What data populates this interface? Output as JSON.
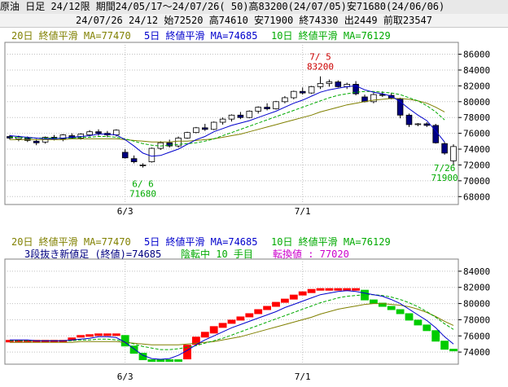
{
  "header": {
    "line1": "原油 日足 24/12限 期間24/05/17～24/07/26( 50)高83200(24/07/05)安71680(24/06/06)",
    "line2": "24/07/26 24/12 始72520 高74610 安71900 終74330 出2449 前取23547"
  },
  "legend": {
    "ma20": "20日 終値平滑 MA=77470",
    "ma5": "5日 終値平滑 MA=74685",
    "ma10": "10日 終値平滑 MA=76129",
    "three_line_break": "3段抜き新値足 (終値)=74685",
    "trend_status": "陰転中 10 手目",
    "reversal_label": "転換値 : 77020"
  },
  "colors": {
    "ma20": "#808000",
    "ma5": "#0000cc",
    "ma10": "#00aa00",
    "high_annotation": "#cc0000",
    "low_annotation": "#00aa00",
    "up_brick": "#ff0000",
    "down_brick": "#00cc00",
    "bearish_candle": "#000080",
    "bullish_candle": "#ffffff",
    "grid": "#c0c0c0",
    "magenta": "#cc00cc"
  },
  "chart_data": [
    {
      "type": "candlestick",
      "yticks": [
        "86000",
        "84000",
        "82000",
        "80000",
        "78000",
        "76000",
        "74000",
        "72000",
        "70000",
        "68000"
      ],
      "ylim": [
        67000,
        87500
      ],
      "xticks": [
        {
          "i": 13,
          "label": "6/3"
        },
        {
          "i": 33,
          "label": "7/1"
        }
      ],
      "annotations": [
        {
          "i": 35,
          "text_date": "7/ 5",
          "text_value": "83200",
          "kind": "high"
        },
        {
          "i": 15,
          "text_date": "6/ 6",
          "text_value": "71680",
          "kind": "low"
        },
        {
          "i": 49,
          "text_date": "7/26",
          "text_value": "71900",
          "kind": "last_low"
        }
      ],
      "ohlc": [
        [
          75600,
          75800,
          75200,
          75400
        ],
        [
          75300,
          75700,
          75000,
          75500
        ],
        [
          75400,
          75600,
          74900,
          75100
        ],
        [
          75000,
          75300,
          74500,
          74800
        ],
        [
          74900,
          75600,
          74700,
          75500
        ],
        [
          75500,
          75800,
          75100,
          75300
        ],
        [
          75300,
          75900,
          75000,
          75800
        ],
        [
          75700,
          76000,
          75300,
          75400
        ],
        [
          75400,
          76000,
          75200,
          75900
        ],
        [
          75800,
          76400,
          75600,
          76200
        ],
        [
          76200,
          76500,
          75700,
          76000
        ],
        [
          76000,
          76300,
          75500,
          75800
        ],
        [
          75800,
          76500,
          75600,
          76400
        ],
        [
          73600,
          74000,
          72800,
          72900
        ],
        [
          72800,
          73200,
          72200,
          72400
        ],
        [
          71900,
          72200,
          71680,
          72000
        ],
        [
          72400,
          74200,
          72300,
          74100
        ],
        [
          74100,
          75000,
          73900,
          74800
        ],
        [
          74800,
          75200,
          74200,
          74400
        ],
        [
          74400,
          75600,
          74200,
          75400
        ],
        [
          75400,
          76200,
          75300,
          76100
        ],
        [
          76100,
          76800,
          76000,
          76700
        ],
        [
          76700,
          77200,
          76300,
          76500
        ],
        [
          76500,
          77500,
          76400,
          77400
        ],
        [
          77400,
          78000,
          77100,
          77800
        ],
        [
          77800,
          78400,
          77500,
          78300
        ],
        [
          78300,
          78700,
          77800,
          78000
        ],
        [
          78000,
          78900,
          77900,
          78800
        ],
        [
          78800,
          79400,
          78500,
          79300
        ],
        [
          79300,
          79800,
          78900,
          79100
        ],
        [
          79100,
          80100,
          79000,
          80000
        ],
        [
          80000,
          80700,
          79800,
          80500
        ],
        [
          80500,
          81400,
          80300,
          81300
        ],
        [
          81300,
          81800,
          80900,
          81100
        ],
        [
          81100,
          82000,
          81000,
          81900
        ],
        [
          81900,
          83200,
          81600,
          82300
        ],
        [
          82300,
          82800,
          81900,
          82500
        ],
        [
          82500,
          82700,
          81800,
          81900
        ],
        [
          81900,
          82400,
          81600,
          82200
        ],
        [
          82200,
          82600,
          80800,
          81000
        ],
        [
          80600,
          80900,
          79900,
          80000
        ],
        [
          80000,
          81100,
          79800,
          80900
        ],
        [
          80900,
          81300,
          80600,
          80800
        ],
        [
          80800,
          81100,
          80300,
          80400
        ],
        [
          80400,
          80500,
          77900,
          78300
        ],
        [
          78300,
          78500,
          76800,
          77100
        ],
        [
          77100,
          77300,
          76900,
          77200
        ],
        [
          77200,
          77400,
          76800,
          77000
        ],
        [
          77000,
          77200,
          74700,
          74800
        ],
        [
          74700,
          74900,
          73300,
          73500
        ]
      ],
      "extra_last": [
        72520,
        74610,
        71900,
        74330
      ],
      "ma5": [
        75700,
        75600,
        75500,
        75400,
        75300,
        75300,
        75400,
        75500,
        75600,
        75700,
        75900,
        75900,
        75800,
        75200,
        74400,
        73500,
        73100,
        73200,
        73600,
        74000,
        74600,
        75200,
        75600,
        76200,
        76600,
        77000,
        77300,
        77600,
        78000,
        78400,
        78800,
        79300,
        79800,
        80200,
        80700,
        81200,
        81500,
        81700,
        81900,
        82000,
        81500,
        81200,
        81000,
        80700,
        80000,
        79100,
        78300,
        77600,
        76300,
        74900
      ],
      "ma10": [
        75500,
        75500,
        75400,
        75400,
        75400,
        75400,
        75400,
        75400,
        75500,
        75500,
        75600,
        75600,
        75500,
        75300,
        75000,
        74700,
        74500,
        74400,
        74500,
        74600,
        74700,
        74800,
        75000,
        75300,
        75700,
        76100,
        76500,
        76900,
        77300,
        77700,
        78100,
        78500,
        78900,
        79300,
        79700,
        80100,
        80500,
        80800,
        81000,
        81200,
        81300,
        81300,
        81200,
        81100,
        80900,
        80500,
        80100,
        79500,
        78700,
        77700
      ],
      "ma20": [
        75200,
        75200,
        75200,
        75200,
        75200,
        75200,
        75200,
        75300,
        75300,
        75300,
        75300,
        75300,
        75300,
        75200,
        75100,
        75000,
        74900,
        74900,
        74900,
        75000,
        75000,
        75100,
        75200,
        75300,
        75500,
        75700,
        75900,
        76200,
        76500,
        76800,
        77100,
        77400,
        77700,
        78000,
        78300,
        78700,
        79000,
        79300,
        79600,
        79800,
        80000,
        80200,
        80300,
        80400,
        80400,
        80300,
        80100,
        79800,
        79300,
        78700
      ]
    },
    {
      "type": "three_line_break",
      "yticks": [
        "84000",
        "82000",
        "80000",
        "78000",
        "76000",
        "74000"
      ],
      "ylim": [
        72500,
        85500
      ],
      "xticks": [
        {
          "i": 13,
          "label": "6/3"
        },
        {
          "i": 33,
          "label": "7/1"
        }
      ],
      "bricks": [
        {
          "i": 0,
          "lo": 75400,
          "hi": 75500,
          "up": true
        },
        {
          "i": 1,
          "lo": 75400,
          "hi": 75500,
          "up": true
        },
        {
          "i": 2,
          "lo": 75400,
          "hi": 75500,
          "up": true
        },
        {
          "i": 3,
          "lo": 75400,
          "hi": 75500,
          "up": true
        },
        {
          "i": 4,
          "lo": 75400,
          "hi": 75500,
          "up": true
        },
        {
          "i": 5,
          "lo": 75400,
          "hi": 75500,
          "up": true
        },
        {
          "i": 6,
          "lo": 75400,
          "hi": 75500,
          "up": true
        },
        {
          "i": 7,
          "lo": 75400,
          "hi": 75800,
          "up": true
        },
        {
          "i": 8,
          "lo": 75800,
          "hi": 76100,
          "up": true
        },
        {
          "i": 9,
          "lo": 75900,
          "hi": 76200,
          "up": true
        },
        {
          "i": 10,
          "lo": 76100,
          "hi": 76300,
          "up": true
        },
        {
          "i": 11,
          "lo": 76100,
          "hi": 76300,
          "up": true
        },
        {
          "i": 12,
          "lo": 76100,
          "hi": 76300,
          "up": true
        },
        {
          "i": 13,
          "lo": 74700,
          "hi": 76100,
          "up": false
        },
        {
          "i": 14,
          "lo": 73800,
          "hi": 74800,
          "up": false
        },
        {
          "i": 15,
          "lo": 73000,
          "hi": 73900,
          "up": false
        },
        {
          "i": 16,
          "lo": 73000,
          "hi": 73100,
          "up": false
        },
        {
          "i": 17,
          "lo": 73000,
          "hi": 73100,
          "up": false
        },
        {
          "i": 18,
          "lo": 73000,
          "hi": 73100,
          "up": false
        },
        {
          "i": 19,
          "lo": 73000,
          "hi": 73100,
          "up": false
        },
        {
          "i": 20,
          "lo": 73100,
          "hi": 74900,
          "up": true
        },
        {
          "i": 21,
          "lo": 74900,
          "hi": 75900,
          "up": true
        },
        {
          "i": 22,
          "lo": 75800,
          "hi": 76500,
          "up": true
        },
        {
          "i": 23,
          "lo": 76300,
          "hi": 77200,
          "up": true
        },
        {
          "i": 24,
          "lo": 77000,
          "hi": 77600,
          "up": true
        },
        {
          "i": 25,
          "lo": 77500,
          "hi": 78000,
          "up": true
        },
        {
          "i": 26,
          "lo": 77900,
          "hi": 78400,
          "up": true
        },
        {
          "i": 27,
          "lo": 78300,
          "hi": 78800,
          "up": true
        },
        {
          "i": 28,
          "lo": 78700,
          "hi": 79300,
          "up": true
        },
        {
          "i": 29,
          "lo": 79200,
          "hi": 79700,
          "up": true
        },
        {
          "i": 30,
          "lo": 79600,
          "hi": 80200,
          "up": true
        },
        {
          "i": 31,
          "lo": 80100,
          "hi": 80600,
          "up": true
        },
        {
          "i": 32,
          "lo": 80500,
          "hi": 81100,
          "up": true
        },
        {
          "i": 33,
          "lo": 81000,
          "hi": 81500,
          "up": true
        },
        {
          "i": 34,
          "lo": 81300,
          "hi": 81800,
          "up": true
        },
        {
          "i": 35,
          "lo": 81600,
          "hi": 81900,
          "up": true
        },
        {
          "i": 36,
          "lo": 81700,
          "hi": 81900,
          "up": true
        },
        {
          "i": 37,
          "lo": 81700,
          "hi": 81900,
          "up": true
        },
        {
          "i": 38,
          "lo": 81700,
          "hi": 81900,
          "up": true
        },
        {
          "i": 39,
          "lo": 81700,
          "hi": 81900,
          "up": true
        },
        {
          "i": 40,
          "lo": 80400,
          "hi": 81700,
          "up": false
        },
        {
          "i": 41,
          "lo": 80000,
          "hi": 80500,
          "up": false
        },
        {
          "i": 42,
          "lo": 79600,
          "hi": 80100,
          "up": false
        },
        {
          "i": 43,
          "lo": 79200,
          "hi": 79700,
          "up": false
        },
        {
          "i": 44,
          "lo": 78700,
          "hi": 79300,
          "up": false
        },
        {
          "i": 45,
          "lo": 77900,
          "hi": 78800,
          "up": false
        },
        {
          "i": 46,
          "lo": 77300,
          "hi": 78000,
          "up": false
        },
        {
          "i": 47,
          "lo": 76600,
          "hi": 77400,
          "up": false
        },
        {
          "i": 48,
          "lo": 75300,
          "hi": 76700,
          "up": false
        },
        {
          "i": 49,
          "lo": 74300,
          "hi": 75400,
          "up": false
        },
        {
          "i": 50,
          "lo": 74300,
          "hi": 74400,
          "up": false
        }
      ],
      "ma5": [
        75500,
        75500,
        75500,
        75400,
        75400,
        75400,
        75400,
        75500,
        75600,
        75700,
        75900,
        75900,
        75800,
        75200,
        74400,
        73600,
        73200,
        73100,
        73200,
        73600,
        74200,
        74900,
        75500,
        76000,
        76500,
        77000,
        77400,
        77800,
        78200,
        78600,
        79000,
        79500,
        79900,
        80300,
        80700,
        81100,
        81300,
        81500,
        81600,
        81500,
        81300,
        81100,
        80900,
        80500,
        80000,
        79300,
        78600,
        77900,
        77000,
        75900,
        75000
      ],
      "ma10": [
        75400,
        75400,
        75400,
        75400,
        75400,
        75400,
        75400,
        75400,
        75500,
        75500,
        75600,
        75600,
        75500,
        75300,
        75000,
        74700,
        74500,
        74300,
        74300,
        74400,
        74600,
        74800,
        75100,
        75400,
        75700,
        76100,
        76500,
        76900,
        77300,
        77700,
        78100,
        78500,
        78900,
        79300,
        79700,
        80100,
        80400,
        80700,
        80900,
        81000,
        81100,
        81100,
        81000,
        80800,
        80500,
        80100,
        79600,
        79000,
        78300,
        77500,
        76800
      ],
      "ma20": [
        75200,
        75200,
        75200,
        75200,
        75200,
        75200,
        75200,
        75200,
        75300,
        75300,
        75300,
        75300,
        75300,
        75200,
        75100,
        75000,
        74900,
        74900,
        74900,
        74900,
        75000,
        75100,
        75200,
        75300,
        75500,
        75700,
        75900,
        76200,
        76500,
        76800,
        77100,
        77400,
        77700,
        78000,
        78300,
        78700,
        79000,
        79300,
        79500,
        79700,
        79900,
        80000,
        80000,
        79900,
        79800,
        79600,
        79300,
        78900,
        78400,
        77800,
        77300
      ]
    }
  ]
}
